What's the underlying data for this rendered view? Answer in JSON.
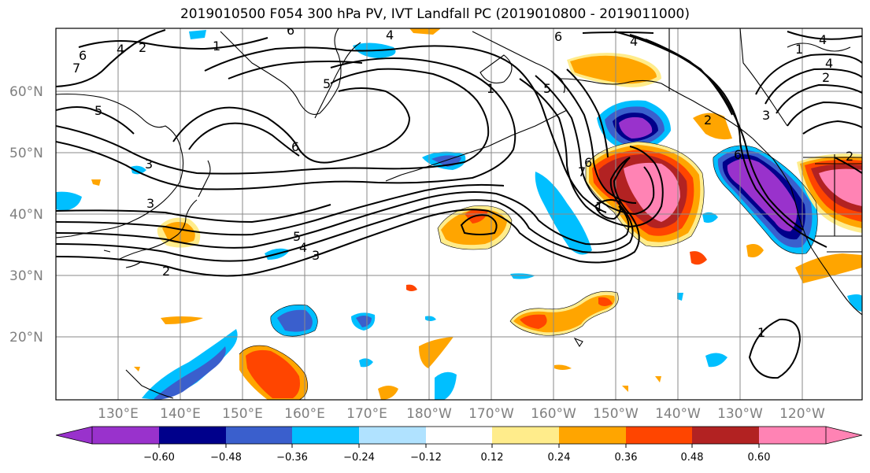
{
  "title": "2019010500 F054 300 hPa PV, IVT Landfall PC (2019010800 - 2019011000)",
  "latitude_labels": [
    "60°N",
    "50°N",
    "40°N",
    "30°N",
    "20°N"
  ],
  "longitude_labels": [
    "130°E",
    "140°E",
    "150°E",
    "160°E",
    "170°E",
    "180°W",
    "170°W",
    "160°W",
    "150°W",
    "140°W",
    "130°W",
    "120°W"
  ],
  "colorbar": {
    "tick_labels": [
      "−0.60",
      "−0.48",
      "−0.36",
      "−0.24",
      "−0.12",
      "0.12",
      "0.24",
      "0.36",
      "0.48",
      "0.60"
    ],
    "colors": [
      "#9932cc",
      "#00008b",
      "#3a5fcd",
      "#00bfff",
      "#b0e2ff",
      "#ffffff",
      "#ffec8b",
      "#ffa500",
      "#ff4500",
      "#b22222",
      "#ff83b4"
    ]
  },
  "contour_labels": [
    "6",
    "7",
    "5",
    "3",
    "4",
    "2",
    "1",
    "6",
    "4",
    "5",
    "6",
    "3",
    "5",
    "4",
    "3",
    "2",
    "1",
    "5",
    "6",
    "1",
    "7",
    "6",
    "4",
    "3",
    "2",
    "4",
    "1",
    "2",
    "6",
    "4",
    "2",
    "1"
  ]
}
